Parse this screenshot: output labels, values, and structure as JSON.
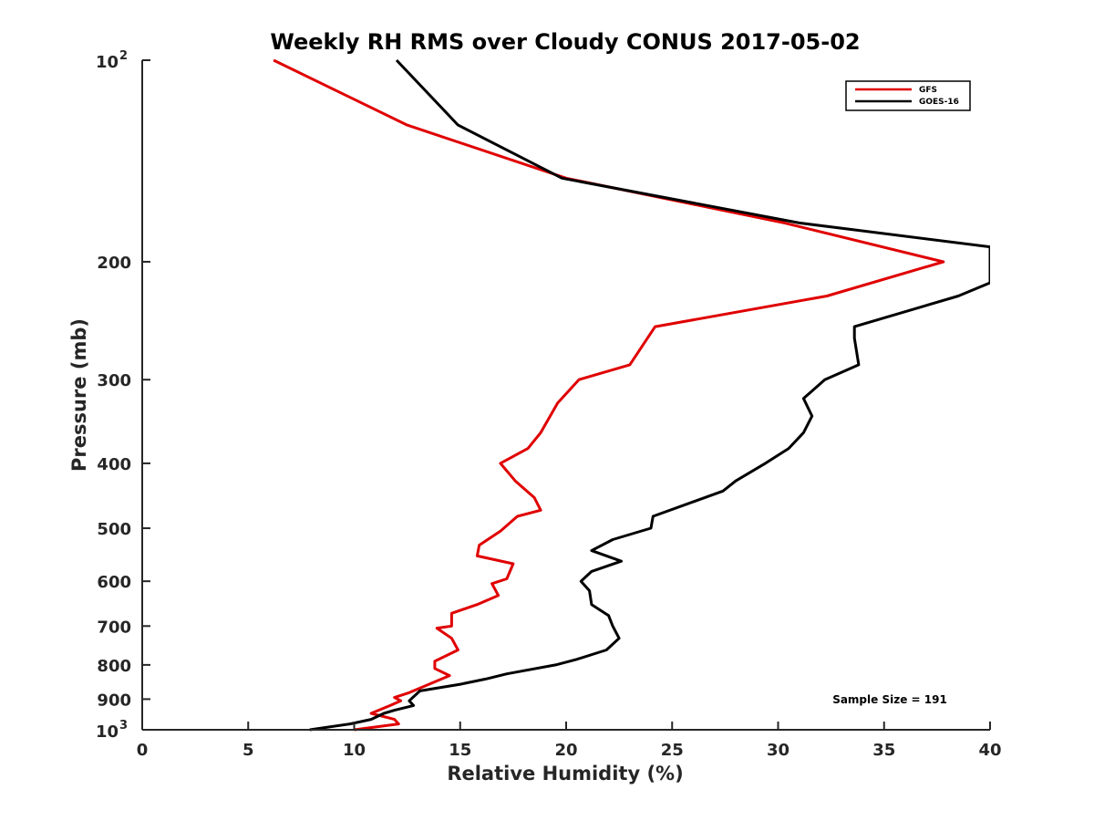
{
  "chart_data": {
    "type": "line",
    "title": "Weekly RH RMS over Cloudy CONUS 2017-05-02",
    "xlabel": "Relative Humidity (%)",
    "ylabel": "Pressure (mb)",
    "xlim": [
      0,
      40
    ],
    "ylim": [
      100,
      1000
    ],
    "y_scale": "log",
    "y_reversed": true,
    "grid": false,
    "legend_position": "top-right",
    "annotation": "Sample Size = 191",
    "x_ticks": [
      0,
      5,
      10,
      15,
      20,
      25,
      30,
      35,
      40
    ],
    "y_ticks": [
      {
        "value": 100,
        "base": "10",
        "exp": "2"
      },
      {
        "value": 200,
        "label": "200"
      },
      {
        "value": 300,
        "label": "300"
      },
      {
        "value": 400,
        "label": "400"
      },
      {
        "value": 500,
        "label": "500"
      },
      {
        "value": 600,
        "label": "600"
      },
      {
        "value": 700,
        "label": "700"
      },
      {
        "value": 800,
        "label": "800"
      },
      {
        "value": 900,
        "label": "900"
      },
      {
        "value": 1000,
        "base": "10",
        "exp": "3"
      }
    ],
    "series": [
      {
        "name": "GFS",
        "color": "#e00000",
        "points": [
          [
            6.2,
            100
          ],
          [
            12.5,
            125
          ],
          [
            20,
            150
          ],
          [
            30.3,
            175
          ],
          [
            37.8,
            200
          ],
          [
            32.3,
            225
          ],
          [
            24.2,
            250
          ],
          [
            23,
            285
          ],
          [
            20.6,
            300
          ],
          [
            19.6,
            325
          ],
          [
            18.8,
            360
          ],
          [
            18.2,
            380
          ],
          [
            16.9,
            400
          ],
          [
            17.6,
            425
          ],
          [
            18.5,
            450
          ],
          [
            18.8,
            470
          ],
          [
            17.7,
            480
          ],
          [
            16.9,
            505
          ],
          [
            15.9,
            530
          ],
          [
            15.8,
            550
          ],
          [
            17.5,
            565
          ],
          [
            17.2,
            595
          ],
          [
            16.5,
            605
          ],
          [
            16.8,
            630
          ],
          [
            15.8,
            650
          ],
          [
            14.6,
            670
          ],
          [
            14.6,
            700
          ],
          [
            13.9,
            705
          ],
          [
            14.6,
            730
          ],
          [
            14.9,
            760
          ],
          [
            13.8,
            790
          ],
          [
            13.8,
            810
          ],
          [
            14.5,
            830
          ],
          [
            12.6,
            880
          ],
          [
            11.9,
            895
          ],
          [
            12.2,
            905
          ],
          [
            11.7,
            920
          ],
          [
            10.8,
            945
          ],
          [
            11.9,
            965
          ],
          [
            12.1,
            980
          ],
          [
            10,
            1000
          ]
        ]
      },
      {
        "name": "GOES-16",
        "color": "#000000",
        "points": [
          [
            12,
            100
          ],
          [
            14.9,
            125
          ],
          [
            19.8,
            150
          ],
          [
            31,
            175
          ],
          [
            40,
            190
          ],
          [
            40,
            215
          ],
          [
            38.5,
            225
          ],
          [
            33.6,
            250
          ],
          [
            33.6,
            260
          ],
          [
            33.8,
            285
          ],
          [
            32.2,
            300
          ],
          [
            31.2,
            320
          ],
          [
            31.6,
            340
          ],
          [
            31.2,
            360
          ],
          [
            30.5,
            380
          ],
          [
            29.4,
            400
          ],
          [
            28,
            425
          ],
          [
            27.4,
            440
          ],
          [
            24.1,
            480
          ],
          [
            24,
            500
          ],
          [
            22.2,
            520
          ],
          [
            21.2,
            540
          ],
          [
            22.6,
            560
          ],
          [
            21.2,
            580
          ],
          [
            20.7,
            600
          ],
          [
            21.1,
            620
          ],
          [
            21.2,
            650
          ],
          [
            22,
            675
          ],
          [
            22.2,
            700
          ],
          [
            22.5,
            730
          ],
          [
            21.9,
            760
          ],
          [
            20.5,
            785
          ],
          [
            19.5,
            800
          ],
          [
            17.2,
            825
          ],
          [
            16.2,
            840
          ],
          [
            15,
            855
          ],
          [
            13.1,
            875
          ],
          [
            12.6,
            905
          ],
          [
            12.8,
            920
          ],
          [
            11.9,
            935
          ],
          [
            11.4,
            945
          ],
          [
            10.8,
            965
          ],
          [
            9.8,
            980
          ],
          [
            7.9,
            1000
          ]
        ]
      }
    ]
  }
}
